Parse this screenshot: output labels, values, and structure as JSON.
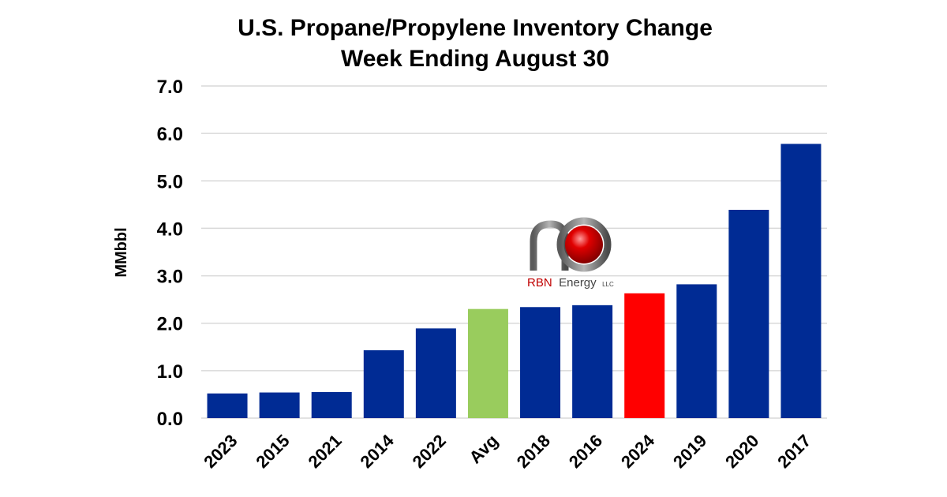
{
  "chart_data": {
    "type": "bar",
    "title": "U.S. Propane/Propylene Inventory Change",
    "subtitle": "Week Ending August 30",
    "xlabel": "",
    "ylabel": "MMbbl",
    "ylim": [
      0,
      7
    ],
    "yticks": [
      "0.0",
      "1.0",
      "2.0",
      "3.0",
      "4.0",
      "5.0",
      "6.0",
      "7.0"
    ],
    "grid": true,
    "categories": [
      "2023",
      "2015",
      "2021",
      "2014",
      "2022",
      "Avg",
      "2018",
      "2016",
      "2024",
      "2019",
      "2020",
      "2017"
    ],
    "values": [
      0.52,
      0.54,
      0.55,
      1.43,
      1.89,
      2.3,
      2.34,
      2.38,
      2.63,
      2.82,
      4.39,
      5.78
    ],
    "colors": [
      "#002b94",
      "#002b94",
      "#002b94",
      "#002b94",
      "#002b94",
      "#99cc5d",
      "#002b94",
      "#002b94",
      "#ff0000",
      "#002b94",
      "#002b94",
      "#002b94"
    ]
  },
  "logo": {
    "text_main": "RBN",
    "text_rest": "Energy",
    "text_suffix": "LLC"
  }
}
